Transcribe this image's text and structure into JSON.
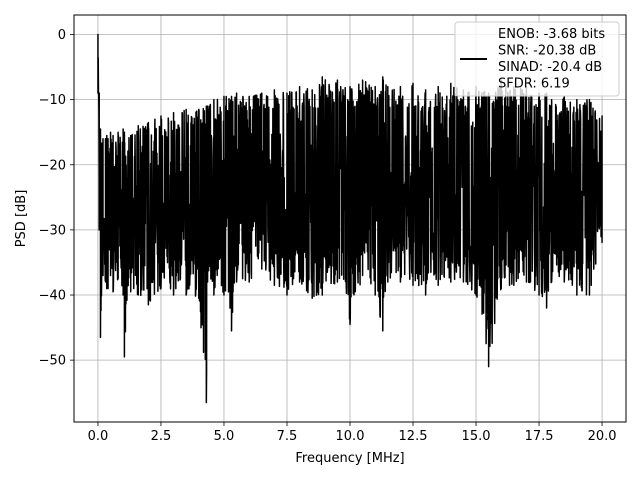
{
  "chart_data": {
    "type": "line",
    "xlabel": "Frequency [MHz]",
    "ylabel": "PSD [dB]",
    "xlim": [
      -0.95,
      20.95
    ],
    "ylim": [
      -59.5,
      3.0
    ],
    "grid": true,
    "legend_position": "top-right",
    "line_color": "#000000",
    "xticks": [
      0.0,
      2.5,
      5.0,
      7.5,
      10.0,
      12.5,
      15.0,
      17.5,
      20.0
    ],
    "xtick_labels": [
      "0.0",
      "2.5",
      "5.0",
      "7.5",
      "10.0",
      "12.5",
      "15.0",
      "17.5",
      "20.0"
    ],
    "yticks": [
      0,
      -10,
      -20,
      -30,
      -40,
      -50
    ],
    "ytick_labels": [
      "0",
      "−10",
      "−20",
      "−30",
      "−40",
      "−50"
    ],
    "legend_entries": [
      "ENOB: -3.68 bits",
      "SNR: -20.38 dB",
      "SINAD: -20.4 dB",
      "SFDR: 6.19"
    ],
    "series": [
      {
        "x": [
          0.0,
          0.05,
          0.1,
          0.2,
          0.3,
          0.35,
          0.4,
          0.5,
          0.6,
          0.8,
          1.0,
          1.05,
          1.3,
          1.6,
          2.0,
          2.5,
          3.0,
          3.5,
          4.0,
          4.3,
          4.35,
          4.6,
          5.0,
          5.3,
          5.5,
          6.0,
          6.5,
          7.0,
          7.5,
          8.0,
          8.5,
          8.9,
          9.5,
          10.0,
          10.5,
          11.0,
          11.3,
          11.5,
          12.0,
          12.5,
          13.0,
          13.5,
          14.0,
          14.5,
          15.0,
          15.5,
          16.0,
          16.5,
          17.0,
          17.5,
          17.8,
          18.0,
          18.5,
          19.0,
          19.5,
          20.0
        ],
        "upper": [
          0.0,
          -9.0,
          -14.5,
          -16.0,
          -16.0,
          -15.5,
          -16.0,
          -15.0,
          -15.5,
          -15.0,
          -14.5,
          -15.0,
          -15.5,
          -14.0,
          -13.5,
          -12.5,
          -12.0,
          -11.5,
          -11.5,
          -11.0,
          -11.0,
          -10.0,
          -9.5,
          -9.5,
          -9.0,
          -9.5,
          -9.0,
          -8.5,
          -9.0,
          -8.0,
          -8.5,
          -6.5,
          -7.0,
          -8.0,
          -7.0,
          -8.0,
          -6.5,
          -8.0,
          -8.0,
          -7.5,
          -8.5,
          -8.0,
          -7.5,
          -8.5,
          -8.0,
          -9.0,
          -7.0,
          -8.0,
          -8.0,
          -9.0,
          -9.0,
          -10.0,
          -9.5,
          -10.0,
          -10.0,
          -12.5
        ],
        "lower": [
          -9.0,
          -30.0,
          -46.5,
          -37.0,
          -38.0,
          -39.0,
          -39.0,
          -37.0,
          -39.5,
          -37.5,
          -40.0,
          -49.5,
          -39.5,
          -40.0,
          -41.5,
          -39.0,
          -40.0,
          -40.0,
          -40.5,
          -56.5,
          -38.0,
          -40.0,
          -40.0,
          -45.5,
          -38.0,
          -38.0,
          -36.0,
          -38.5,
          -40.0,
          -38.0,
          -40.5,
          -40.0,
          -38.0,
          -44.5,
          -37.0,
          -40.0,
          -45.5,
          -38.0,
          -38.0,
          -38.5,
          -40.0,
          -38.5,
          -38.0,
          -38.0,
          -40.0,
          -51.0,
          -39.0,
          -38.5,
          -38.0,
          -40.0,
          -42.0,
          -38.0,
          -38.0,
          -40.0,
          -40.0,
          -32.0
        ]
      }
    ]
  }
}
